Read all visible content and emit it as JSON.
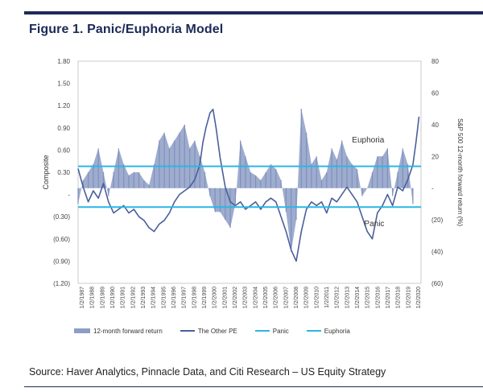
{
  "figure": {
    "title": "Figure 1. Panic/Euphoria Model",
    "source": "Source: Haver Analytics, Pinnacle Data, and Citi Research – US Equity Strategy"
  },
  "legend": {
    "items": [
      {
        "label": "12-month forward return",
        "kind": "bar",
        "color": "#8d9dc6"
      },
      {
        "label": "The Other PE",
        "kind": "line",
        "color": "#4a5f9a"
      },
      {
        "label": "Panic",
        "kind": "line",
        "color": "#29b7e5"
      },
      {
        "label": "Euphoria",
        "kind": "line",
        "color": "#29b7e5"
      }
    ]
  },
  "chart_data": {
    "type": "line",
    "ylabel_left": "Composite",
    "ylabel_right": "S&P 500 12-month forward return (%)",
    "ylim_left": [
      -1.2,
      1.8
    ],
    "ylim_right": [
      -60,
      80
    ],
    "yticks_left": [
      "1.80",
      "1.50",
      "1.20",
      "0.90",
      "0.60",
      "0.30",
      "-",
      "(0.30)",
      "(0.60)",
      "(0.90)",
      "(1.20)"
    ],
    "yticks_right": [
      "80",
      "60",
      "40",
      "20",
      "-",
      "(20)",
      "(40)",
      "(60)"
    ],
    "xticks": [
      "1/2/1987",
      "1/2/1988",
      "1/2/1989",
      "1/2/1990",
      "1/2/1991",
      "1/2/1992",
      "1/2/1993",
      "1/2/1994",
      "1/2/1995",
      "1/2/1996",
      "1/2/1997",
      "1/2/1998",
      "1/2/1999",
      "1/2/2000",
      "1/2/2001",
      "1/2/2002",
      "1/2/2003",
      "1/2/2004",
      "1/2/2005",
      "1/2/2006",
      "1/2/2007",
      "1/2/2008",
      "1/2/2009",
      "1/2/2010",
      "1/2/2011",
      "1/2/2012",
      "1/2/2013",
      "1/2/2014",
      "1/2/2015",
      "1/2/2016",
      "1/2/2017",
      "1/2/2018",
      "1/2/2019",
      "1/2/2020"
    ],
    "euphoria_level": 0.38,
    "panic_level": -0.17,
    "annotations": [
      {
        "text": "Euphoria",
        "x": 2014.0,
        "y": 0.7
      },
      {
        "text": "Panic",
        "x": 2015.2,
        "y": -0.43
      }
    ],
    "series": [
      {
        "name": "The Other PE",
        "axis": "left",
        "x": [
          1987.0,
          1987.5,
          1988.0,
          1988.5,
          1989.0,
          1989.5,
          1990.0,
          1990.5,
          1991.0,
          1991.5,
          1992.0,
          1992.5,
          1993.0,
          1993.5,
          1994.0,
          1994.5,
          1995.0,
          1995.5,
          1996.0,
          1996.5,
          1997.0,
          1997.5,
          1998.0,
          1998.5,
          1999.0,
          1999.3,
          1999.6,
          2000.0,
          2000.3,
          2000.6,
          2001.0,
          2001.5,
          2002.0,
          2002.5,
          2003.0,
          2003.5,
          2004.0,
          2004.5,
          2005.0,
          2005.5,
          2006.0,
          2006.5,
          2007.0,
          2007.5,
          2008.0,
          2008.5,
          2009.0,
          2009.5,
          2010.0,
          2010.5,
          2011.0,
          2011.5,
          2012.0,
          2012.5,
          2013.0,
          2013.5,
          2014.0,
          2014.5,
          2015.0,
          2015.5,
          2016.0,
          2016.5,
          2017.0,
          2017.5,
          2018.0,
          2018.5,
          2019.0,
          2019.5,
          2020.0,
          2020.3,
          2020.6
        ],
        "values": [
          0.35,
          0.1,
          -0.1,
          0.05,
          -0.05,
          0.15,
          -0.1,
          -0.25,
          -0.2,
          -0.15,
          -0.25,
          -0.2,
          -0.3,
          -0.35,
          -0.45,
          -0.5,
          -0.4,
          -0.35,
          -0.25,
          -0.1,
          0.0,
          0.05,
          0.1,
          0.2,
          0.4,
          0.7,
          0.9,
          1.1,
          1.15,
          0.9,
          0.5,
          0.1,
          -0.1,
          -0.15,
          -0.1,
          -0.2,
          -0.15,
          -0.1,
          -0.2,
          -0.1,
          -0.05,
          -0.1,
          -0.3,
          -0.5,
          -0.75,
          -0.9,
          -0.5,
          -0.2,
          -0.1,
          -0.15,
          -0.1,
          -0.25,
          -0.05,
          -0.1,
          0.0,
          0.1,
          0.0,
          -0.1,
          -0.3,
          -0.5,
          -0.6,
          -0.25,
          -0.15,
          0.0,
          -0.15,
          0.1,
          0.05,
          0.2,
          0.4,
          0.7,
          1.05
        ]
      },
      {
        "name": "12-month forward return",
        "axis": "right",
        "x": [
          1987.0,
          1987.5,
          1988.0,
          1988.5,
          1989.0,
          1989.5,
          1990.0,
          1990.5,
          1991.0,
          1991.5,
          1992.0,
          1992.5,
          1993.0,
          1993.5,
          1994.0,
          1994.5,
          1995.0,
          1995.5,
          1996.0,
          1996.5,
          1997.0,
          1997.5,
          1998.0,
          1998.5,
          1999.0,
          1999.5,
          2000.0,
          2000.5,
          2001.0,
          2001.5,
          2002.0,
          2002.5,
          2003.0,
          2003.5,
          2004.0,
          2004.5,
          2005.0,
          2005.5,
          2006.0,
          2006.5,
          2007.0,
          2007.5,
          2008.0,
          2008.5,
          2009.0,
          2009.5,
          2010.0,
          2010.5,
          2011.0,
          2011.5,
          2012.0,
          2012.5,
          2013.0,
          2013.5,
          2014.0,
          2014.5,
          2015.0,
          2015.5,
          2016.0,
          2016.5,
          2017.0,
          2017.5,
          2018.0,
          2018.5,
          2019.0,
          2019.5,
          2020.0
        ],
        "values": [
          -10,
          5,
          10,
          15,
          25,
          10,
          -5,
          10,
          25,
          15,
          8,
          10,
          10,
          5,
          2,
          15,
          30,
          35,
          25,
          30,
          35,
          40,
          25,
          30,
          20,
          10,
          -5,
          -15,
          -15,
          -20,
          -25,
          -10,
          30,
          20,
          10,
          8,
          5,
          10,
          15,
          12,
          5,
          -15,
          -40,
          -20,
          50,
          35,
          15,
          20,
          5,
          10,
          25,
          18,
          30,
          20,
          15,
          12,
          -5,
          0,
          10,
          20,
          20,
          25,
          -5,
          10,
          25,
          15,
          -10
        ]
      }
    ]
  }
}
